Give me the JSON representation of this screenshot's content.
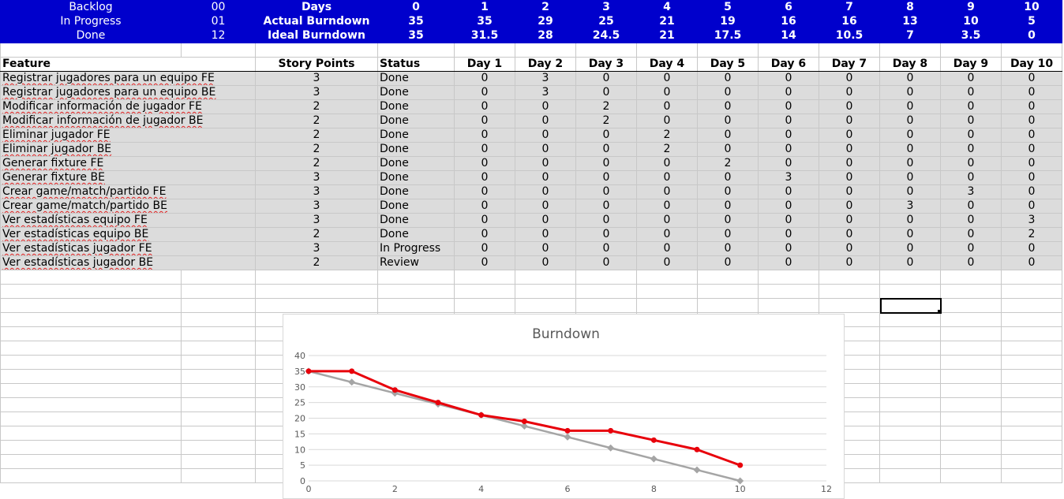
{
  "summary": {
    "labels": [
      "Backlog",
      "In Progress",
      "Done"
    ],
    "values": [
      "00",
      "01",
      "12"
    ],
    "row_titles": [
      "Days",
      "Actual Burndown",
      "Ideal Burndown"
    ],
    "days": [
      "0",
      "1",
      "2",
      "3",
      "4",
      "5",
      "6",
      "7",
      "8",
      "9",
      "10"
    ],
    "actual": [
      "35",
      "35",
      "29",
      "25",
      "21",
      "19",
      "16",
      "16",
      "13",
      "10",
      "5"
    ],
    "ideal": [
      "35",
      "31.5",
      "28",
      "24.5",
      "21",
      "17.5",
      "14",
      "10.5",
      "7",
      "3.5",
      "0"
    ]
  },
  "table": {
    "headers": [
      "Feature",
      "Story Points",
      "Status",
      "Day 1",
      "Day 2",
      "Day 3",
      "Day 4",
      "Day 5",
      "Day 6",
      "Day 7",
      "Day 8",
      "Day 9",
      "Day 10"
    ],
    "rows": [
      [
        "Registrar jugadores para un equipo FE",
        "3",
        "Done",
        "0",
        "3",
        "0",
        "0",
        "0",
        "0",
        "0",
        "0",
        "0",
        "0"
      ],
      [
        "Registrar jugadores para un equipo BE",
        "3",
        "Done",
        "0",
        "3",
        "0",
        "0",
        "0",
        "0",
        "0",
        "0",
        "0",
        "0"
      ],
      [
        "Modificar información de jugador FE",
        "2",
        "Done",
        "0",
        "0",
        "2",
        "0",
        "0",
        "0",
        "0",
        "0",
        "0",
        "0"
      ],
      [
        "Modificar información de jugador BE",
        "2",
        "Done",
        "0",
        "0",
        "2",
        "0",
        "0",
        "0",
        "0",
        "0",
        "0",
        "0"
      ],
      [
        "Eliminar jugador FE",
        "2",
        "Done",
        "0",
        "0",
        "0",
        "2",
        "0",
        "0",
        "0",
        "0",
        "0",
        "0"
      ],
      [
        "Eliminar jugador BE",
        "2",
        "Done",
        "0",
        "0",
        "0",
        "2",
        "0",
        "0",
        "0",
        "0",
        "0",
        "0"
      ],
      [
        "Generar fixture FE",
        "2",
        "Done",
        "0",
        "0",
        "0",
        "0",
        "2",
        "0",
        "0",
        "0",
        "0",
        "0"
      ],
      [
        "Generar fixture BE",
        "3",
        "Done",
        "0",
        "0",
        "0",
        "0",
        "0",
        "3",
        "0",
        "0",
        "0",
        "0"
      ],
      [
        "Crear game/match/partido FE",
        "3",
        "Done",
        "0",
        "0",
        "0",
        "0",
        "0",
        "0",
        "0",
        "0",
        "3",
        "0"
      ],
      [
        "Crear game/match/partido BE",
        "3",
        "Done",
        "0",
        "0",
        "0",
        "0",
        "0",
        "0",
        "0",
        "3",
        "0",
        "0"
      ],
      [
        "Ver estadísticas equipo FE",
        "3",
        "Done",
        "0",
        "0",
        "0",
        "0",
        "0",
        "0",
        "0",
        "0",
        "0",
        "3"
      ],
      [
        "Ver estadísticas equipo BE",
        "2",
        "Done",
        "0",
        "0",
        "0",
        "0",
        "0",
        "0",
        "0",
        "0",
        "0",
        "2"
      ],
      [
        "Ver estadísticas jugador FE",
        "3",
        "In Progress",
        "0",
        "0",
        "0",
        "0",
        "0",
        "0",
        "0",
        "0",
        "0",
        "0"
      ],
      [
        "Ver estadísticas jugador BE",
        "2",
        "Review",
        "0",
        "0",
        "0",
        "0",
        "0",
        "0",
        "0",
        "0",
        "0",
        "0"
      ]
    ]
  },
  "chart_data": {
    "type": "line",
    "title": "Burndown",
    "xlim": [
      0,
      12
    ],
    "ylim": [
      0,
      40
    ],
    "x_ticks": [
      "0",
      "2",
      "4",
      "6",
      "8",
      "10",
      "12"
    ],
    "y_ticks": [
      "0",
      "5",
      "10",
      "15",
      "20",
      "25",
      "30",
      "35",
      "40"
    ],
    "grid": "horizontal",
    "legend": "none",
    "series": [
      {
        "color": "#e8000b",
        "marker": "circle",
        "x": [
          0,
          1,
          2,
          3,
          4,
          5,
          6,
          7,
          8,
          9,
          10
        ],
        "y": [
          35,
          35,
          29,
          25,
          21,
          19,
          16,
          16,
          13,
          10,
          5
        ]
      },
      {
        "color": "#a5a5a5",
        "marker": "diamond",
        "x": [
          0,
          1,
          2,
          3,
          4,
          5,
          6,
          7,
          8,
          9,
          10
        ],
        "y": [
          35,
          31.5,
          28,
          24.5,
          21,
          17.5,
          14,
          10.5,
          7,
          3.5,
          0
        ]
      }
    ]
  }
}
